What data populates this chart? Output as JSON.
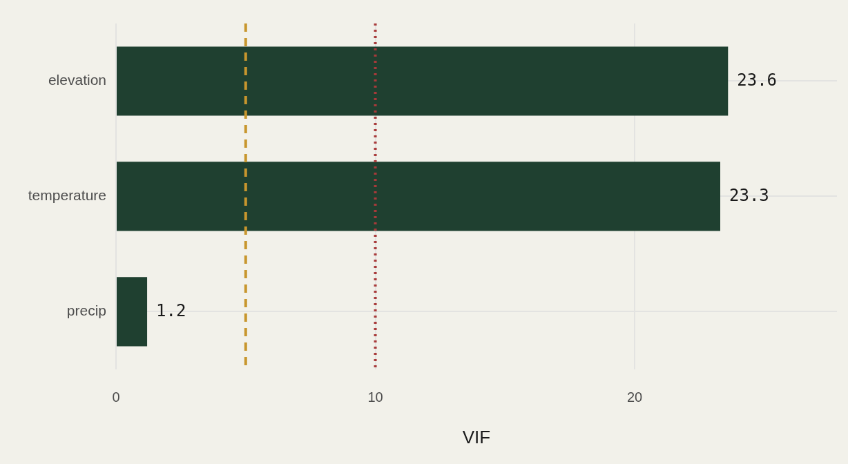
{
  "chart_data": {
    "type": "bar",
    "orientation": "horizontal",
    "categories": [
      "elevation",
      "temperature",
      "precip"
    ],
    "values": [
      23.6,
      23.3,
      1.2
    ],
    "color": "#1f4030",
    "xlabel": "VIF",
    "xlim": [
      0,
      27.8
    ],
    "xticks": [
      0,
      10,
      20
    ],
    "grid": true,
    "legend": false,
    "data_labels": true,
    "ref_lines": [
      {
        "axis": "x",
        "value": 5,
        "color": "#c8962e",
        "line_style": "dashed"
      },
      {
        "axis": "x",
        "value": 10,
        "color": "#a83a3a",
        "line_style": "dotted"
      }
    ]
  }
}
